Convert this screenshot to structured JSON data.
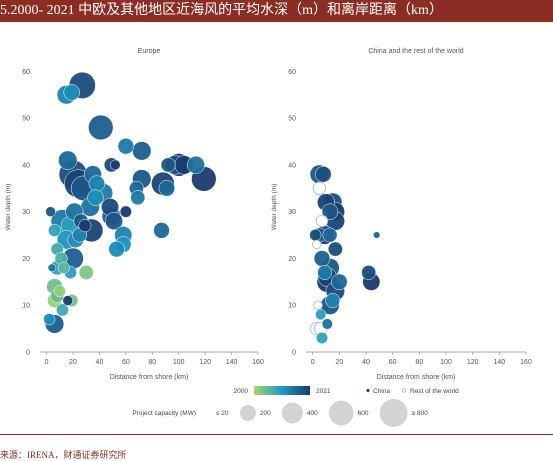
{
  "header": {
    "title": "5.2000- 2021 中欧及其他地区近海风的平均水深（m）和离岸距离（km）"
  },
  "footer": {
    "source": "来源：IRENA，财通证券研究所"
  },
  "colors": {
    "title_bg": "#8b2d22",
    "gradient_start": "#a8d86a",
    "gradient_mid": "#1f9ac4",
    "gradient_end": "#1a3b6e",
    "china": "#1d4a7a",
    "rest_outline": "#9bb7c8"
  },
  "legend": {
    "year_start": "2000",
    "year_end": "2021",
    "china_label": "China",
    "rest_label": "Rest of the world",
    "capacity_label": "Project capacity (MW)",
    "capacity_items": [
      {
        "label": "≤ 20",
        "mw": 20
      },
      {
        "label": "200",
        "mw": 200
      },
      {
        "label": "400",
        "mw": 400
      },
      {
        "label": "600",
        "mw": 600
      },
      {
        "label": "≥ 800",
        "mw": 800
      }
    ]
  },
  "chart_data": [
    {
      "type": "scatter",
      "title": "Europe",
      "xlabel": "Distance from shore (km)",
      "ylabel": "Water depth (m)",
      "xlim": [
        -5,
        160
      ],
      "ylim": [
        0,
        62
      ],
      "xticks": [
        0,
        20,
        40,
        60,
        80,
        100,
        120,
        140,
        160
      ],
      "yticks": [
        0,
        10,
        20,
        30,
        40,
        50,
        60
      ],
      "points": [
        {
          "x": 27,
          "y": 57,
          "mw": 700,
          "year": 2019
        },
        {
          "x": 15,
          "y": 55,
          "mw": 300,
          "year": 2013
        },
        {
          "x": 19,
          "y": 55.5,
          "mw": 200,
          "year": 2012
        },
        {
          "x": 41,
          "y": 48,
          "mw": 600,
          "year": 2017
        },
        {
          "x": 60,
          "y": 44,
          "mw": 200,
          "year": 2014
        },
        {
          "x": 72,
          "y": 43,
          "mw": 300,
          "year": 2017
        },
        {
          "x": 16,
          "y": 41,
          "mw": 300,
          "year": 2016
        },
        {
          "x": 20,
          "y": 38,
          "mw": 800,
          "year": 2019
        },
        {
          "x": 24,
          "y": 36,
          "mw": 800,
          "year": 2020
        },
        {
          "x": 28,
          "y": 35,
          "mw": 600,
          "year": 2018
        },
        {
          "x": 35,
          "y": 38,
          "mw": 250,
          "year": 2016
        },
        {
          "x": 49,
          "y": 40,
          "mw": 150,
          "year": 2019
        },
        {
          "x": 52,
          "y": 40,
          "mw": 50,
          "year": 2021
        },
        {
          "x": 38,
          "y": 36,
          "mw": 200,
          "year": 2013
        },
        {
          "x": 43,
          "y": 34,
          "mw": 300,
          "year": 2014
        },
        {
          "x": 37,
          "y": 33,
          "mw": 200,
          "year": 2012
        },
        {
          "x": 33,
          "y": 31,
          "mw": 300,
          "year": 2015
        },
        {
          "x": 48,
          "y": 31,
          "mw": 250,
          "year": 2019
        },
        {
          "x": 49,
          "y": 29,
          "mw": 300,
          "year": 2017
        },
        {
          "x": 51,
          "y": 28,
          "mw": 250,
          "year": 2018
        },
        {
          "x": 21,
          "y": 30,
          "mw": 250,
          "year": 2015
        },
        {
          "x": 12,
          "y": 28,
          "mw": 500,
          "year": 2014
        },
        {
          "x": 18,
          "y": 27,
          "mw": 300,
          "year": 2010
        },
        {
          "x": 26,
          "y": 28,
          "mw": 150,
          "year": 2018
        },
        {
          "x": 29,
          "y": 27,
          "mw": 100,
          "year": 2021
        },
        {
          "x": 34,
          "y": 26,
          "mw": 500,
          "year": 2020
        },
        {
          "x": 25,
          "y": 25,
          "mw": 150,
          "year": 2013
        },
        {
          "x": 15,
          "y": 24,
          "mw": 300,
          "year": 2011
        },
        {
          "x": 22,
          "y": 24,
          "mw": 200,
          "year": 2012
        },
        {
          "x": 6,
          "y": 26,
          "mw": 100,
          "year": 2009
        },
        {
          "x": 8,
          "y": 22,
          "mw": 100,
          "year": 2008
        },
        {
          "x": 20,
          "y": 20,
          "mw": 400,
          "year": 2017
        },
        {
          "x": 11,
          "y": 20,
          "mw": 100,
          "year": 2007
        },
        {
          "x": 13,
          "y": 18,
          "mw": 80,
          "year": 2006
        },
        {
          "x": 8,
          "y": 18,
          "mw": 150,
          "year": 2009
        },
        {
          "x": 4,
          "y": 18,
          "mw": 20,
          "year": 2015
        },
        {
          "x": 18,
          "y": 17,
          "mw": 100,
          "year": 2010
        },
        {
          "x": 30,
          "y": 17,
          "mw": 150,
          "year": 2003
        },
        {
          "x": 6,
          "y": 14,
          "mw": 200,
          "year": 2004
        },
        {
          "x": 8,
          "y": 12,
          "mw": 120,
          "year": 2005
        },
        {
          "x": 10,
          "y": 13,
          "mw": 80,
          "year": 2002
        },
        {
          "x": 6,
          "y": 11,
          "mw": 150,
          "year": 2001
        },
        {
          "x": 16,
          "y": 11,
          "mw": 50,
          "year": 2021
        },
        {
          "x": 19,
          "y": 11,
          "mw": 100,
          "year": 2004
        },
        {
          "x": 12,
          "y": 9,
          "mw": 100,
          "year": 2008
        },
        {
          "x": 2,
          "y": 7,
          "mw": 80,
          "year": 2012
        },
        {
          "x": 6,
          "y": 6,
          "mw": 300,
          "year": 2017
        },
        {
          "x": 3,
          "y": 30,
          "mw": 50,
          "year": 2018
        },
        {
          "x": 60,
          "y": 30,
          "mw": 80,
          "year": 2021
        },
        {
          "x": 58,
          "y": 25,
          "mw": 250,
          "year": 2013
        },
        {
          "x": 58,
          "y": 23,
          "mw": 200,
          "year": 2011
        },
        {
          "x": 53,
          "y": 22,
          "mw": 200,
          "year": 2012
        },
        {
          "x": 68,
          "y": 35,
          "mw": 150,
          "year": 2016
        },
        {
          "x": 69,
          "y": 33,
          "mw": 150,
          "year": 2014
        },
        {
          "x": 72,
          "y": 37,
          "mw": 300,
          "year": 2018
        },
        {
          "x": 88,
          "y": 36,
          "mw": 500,
          "year": 2020
        },
        {
          "x": 91,
          "y": 35,
          "mw": 200,
          "year": 2016
        },
        {
          "x": 92,
          "y": 40,
          "mw": 150,
          "year": 2018
        },
        {
          "x": 97,
          "y": 40,
          "mw": 300,
          "year": 2019
        },
        {
          "x": 100,
          "y": 40,
          "mw": 500,
          "year": 2020
        },
        {
          "x": 104,
          "y": 40,
          "mw": 300,
          "year": 2021
        },
        {
          "x": 113,
          "y": 40,
          "mw": 250,
          "year": 2015
        },
        {
          "x": 119,
          "y": 37,
          "mw": 600,
          "year": 2021
        },
        {
          "x": 87,
          "y": 26,
          "mw": 200,
          "year": 2016
        }
      ]
    },
    {
      "type": "scatter",
      "title": "China and the rest of the world",
      "xlabel": "Distance from shore (km)",
      "ylabel": "Water depth (m)",
      "xlim": [
        -5,
        160
      ],
      "ylim": [
        0,
        62
      ],
      "xticks": [
        0,
        20,
        40,
        60,
        80,
        100,
        120,
        140,
        160
      ],
      "yticks": [
        0,
        10,
        20,
        30,
        40,
        50,
        60
      ],
      "points": [
        {
          "x": 5,
          "y": 38,
          "mw": 300,
          "year": 2018,
          "group": "china"
        },
        {
          "x": 8,
          "y": 38,
          "mw": 200,
          "year": 2019,
          "group": "china"
        },
        {
          "x": 5,
          "y": 35,
          "mw": 100,
          "year": 2016,
          "group": "rest"
        },
        {
          "x": 10,
          "y": 32,
          "mw": 250,
          "year": 2020,
          "group": "china"
        },
        {
          "x": 15,
          "y": 32,
          "mw": 300,
          "year": 2019,
          "group": "china"
        },
        {
          "x": 13,
          "y": 30,
          "mw": 200,
          "year": 2018,
          "group": "china"
        },
        {
          "x": 17,
          "y": 30,
          "mw": 300,
          "year": 2021,
          "group": "china"
        },
        {
          "x": 17,
          "y": 28,
          "mw": 300,
          "year": 2020,
          "group": "china"
        },
        {
          "x": 7,
          "y": 28,
          "mw": 80,
          "year": 2015,
          "group": "rest"
        },
        {
          "x": 2,
          "y": 25,
          "mw": 80,
          "year": 2019,
          "group": "china"
        },
        {
          "x": 5,
          "y": 25,
          "mw": 150,
          "year": 2017,
          "group": "china"
        },
        {
          "x": 9,
          "y": 25,
          "mw": 300,
          "year": 2021,
          "group": "china"
        },
        {
          "x": 13,
          "y": 25,
          "mw": 150,
          "year": 2016,
          "group": "china"
        },
        {
          "x": 3,
          "y": 23,
          "mw": 30,
          "year": 2014,
          "group": "rest"
        },
        {
          "x": 17,
          "y": 22,
          "mw": 150,
          "year": 2019,
          "group": "china"
        },
        {
          "x": 7,
          "y": 20,
          "mw": 200,
          "year": 2017,
          "group": "china"
        },
        {
          "x": 13,
          "y": 18,
          "mw": 300,
          "year": 2018,
          "group": "china"
        },
        {
          "x": 9,
          "y": 17,
          "mw": 150,
          "year": 2014,
          "group": "china"
        },
        {
          "x": 11,
          "y": 16,
          "mw": 300,
          "year": 2020,
          "group": "china"
        },
        {
          "x": 11,
          "y": 15,
          "mw": 400,
          "year": 2021,
          "group": "china"
        },
        {
          "x": 20,
          "y": 15,
          "mw": 200,
          "year": 2016,
          "group": "china"
        },
        {
          "x": 17,
          "y": 13,
          "mw": 300,
          "year": 2019,
          "group": "china"
        },
        {
          "x": 15,
          "y": 11,
          "mw": 150,
          "year": 2013,
          "group": "china"
        },
        {
          "x": 13,
          "y": 10,
          "mw": 300,
          "year": 2018,
          "group": "china"
        },
        {
          "x": 4,
          "y": 10,
          "mw": 30,
          "year": 2012,
          "group": "rest"
        },
        {
          "x": 6,
          "y": 8,
          "mw": 60,
          "year": 2010,
          "group": "china"
        },
        {
          "x": 11,
          "y": 6,
          "mw": 60,
          "year": 2015,
          "group": "china"
        },
        {
          "x": 3,
          "y": 5,
          "mw": 100,
          "year": 2011,
          "group": "rest"
        },
        {
          "x": 6,
          "y": 5,
          "mw": 100,
          "year": 2012,
          "group": "rest"
        },
        {
          "x": 7,
          "y": 3,
          "mw": 80,
          "year": 2009,
          "group": "china"
        },
        {
          "x": 42,
          "y": 17,
          "mw": 150,
          "year": 2019,
          "group": "china"
        },
        {
          "x": 44,
          "y": 15,
          "mw": 250,
          "year": 2021,
          "group": "china"
        },
        {
          "x": 48,
          "y": 25,
          "mw": 10,
          "year": 2016,
          "group": "china"
        }
      ]
    }
  ]
}
